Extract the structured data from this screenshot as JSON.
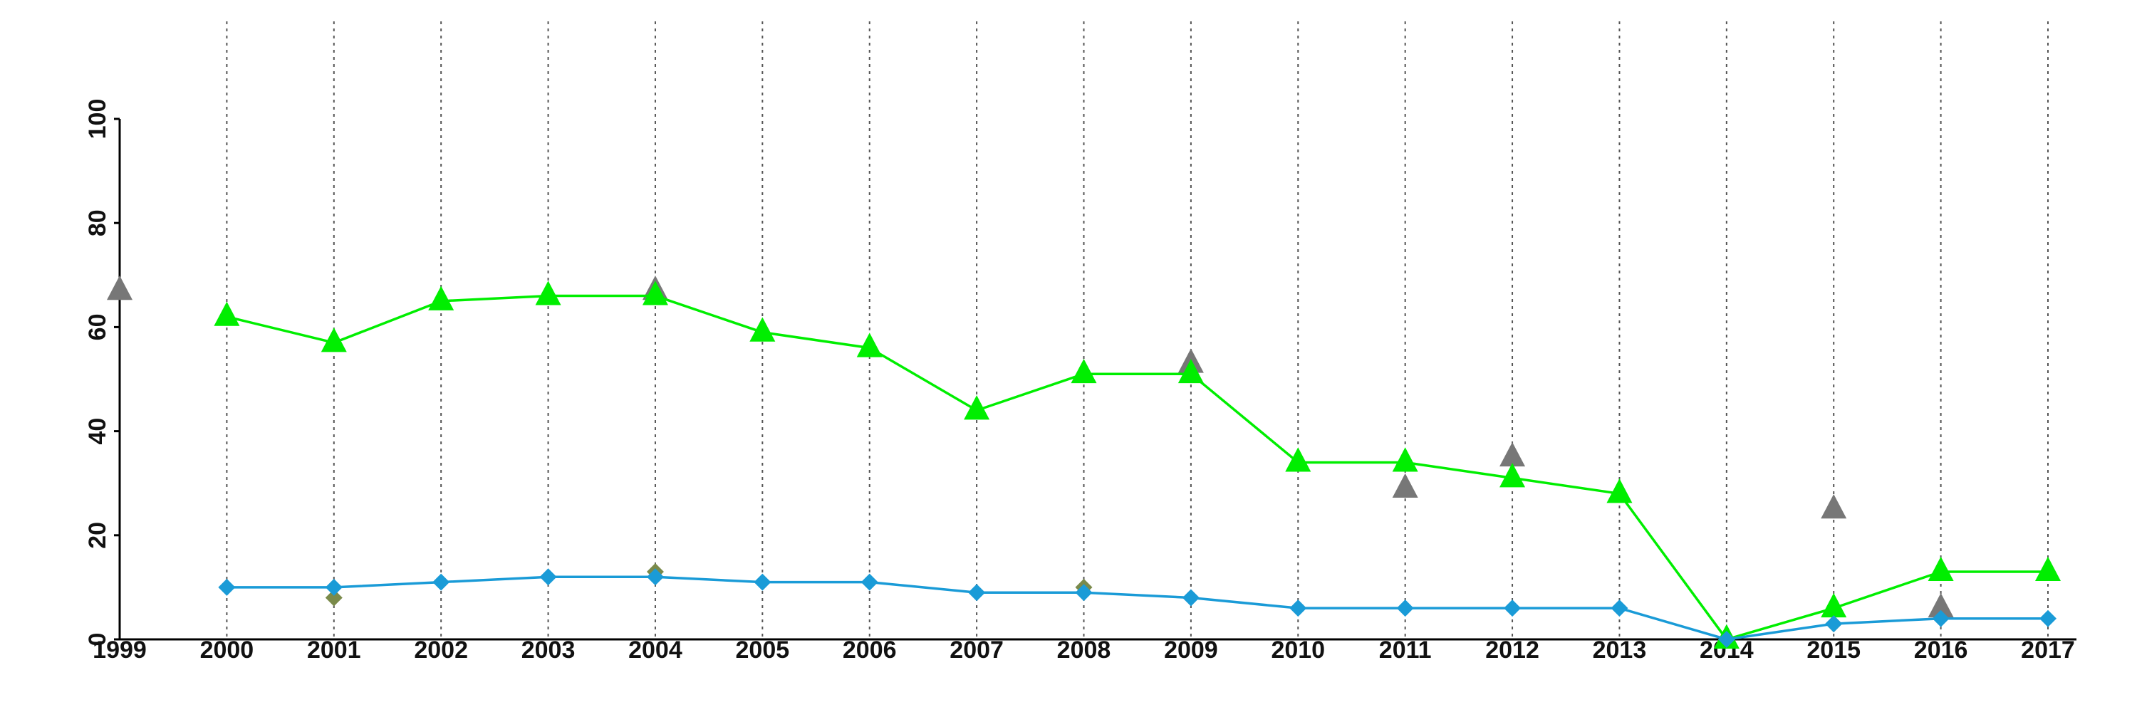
{
  "chart_data": {
    "type": "line",
    "title": "",
    "xlabel": "",
    "ylabel": "",
    "x": [
      1999,
      2000,
      2001,
      2002,
      2003,
      2004,
      2005,
      2006,
      2007,
      2008,
      2009,
      2010,
      2011,
      2012,
      2013,
      2014,
      2015,
      2016,
      2017
    ],
    "x_tick_labels": [
      "1999",
      "2000",
      "2001",
      "2002",
      "2003",
      "2004",
      "2005",
      "2006",
      "2007",
      "2008",
      "2009",
      "2010",
      "2011",
      "2012",
      "2013",
      "2014",
      "2015",
      "2016",
      "2017"
    ],
    "y_ticks": [
      0,
      20,
      40,
      60,
      80,
      100
    ],
    "y_tick_labels": [
      "0",
      "20",
      "40",
      "60",
      "80",
      "100"
    ],
    "xlim": [
      1999,
      2017
    ],
    "ylim": [
      0,
      100
    ],
    "grid": "vertical dotted lines at each year",
    "legend": "none",
    "series": [
      {
        "marker": "triangle",
        "color": "#00ee00",
        "line": true,
        "x": [
          2000,
          2001,
          2002,
          2003,
          2004,
          2005,
          2006,
          2007,
          2008,
          2009,
          2010,
          2011,
          2012,
          2013,
          2014,
          2015,
          2016,
          2017
        ],
        "values": [
          62,
          57,
          65,
          66,
          66,
          59,
          56,
          44,
          51,
          51,
          34,
          34,
          31,
          28,
          0,
          6,
          13,
          13
        ]
      },
      {
        "marker": "diamond",
        "color": "#1a9bd7",
        "line": true,
        "x": [
          2000,
          2001,
          2002,
          2003,
          2004,
          2005,
          2006,
          2007,
          2008,
          2009,
          2010,
          2011,
          2012,
          2013,
          2014,
          2015,
          2016,
          2017
        ],
        "values": [
          10,
          10,
          11,
          12,
          12,
          11,
          11,
          9,
          9,
          8,
          6,
          6,
          6,
          6,
          0,
          3,
          4,
          4
        ]
      },
      {
        "marker": "triangle",
        "color": "#777777",
        "line": false,
        "x": [
          1999,
          2004,
          2009,
          2011,
          2012,
          2014,
          2015,
          2016
        ],
        "values": [
          67,
          67,
          53,
          29,
          35,
          0,
          25,
          6
        ]
      },
      {
        "marker": "diamond",
        "color": "#7a8a4a",
        "line": false,
        "x": [
          2001,
          2004,
          2008,
          2014,
          2015
        ],
        "values": [
          8,
          13,
          10,
          0,
          3
        ]
      }
    ]
  }
}
